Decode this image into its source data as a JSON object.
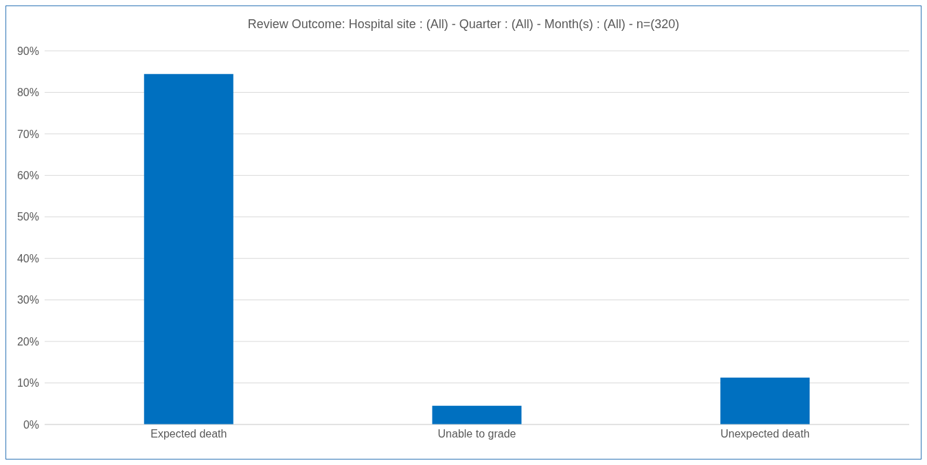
{
  "chart_data": {
    "type": "bar",
    "title": "Review Outcome: Hospital site : (All) - Quarter : (All) - Month(s) : (All) - n=(320)",
    "categories": [
      "Expected death",
      "Unable to grade",
      "Unexpected death"
    ],
    "values": [
      84.4,
      4.5,
      11.3
    ],
    "color": "#0070c0",
    "ylim": [
      0,
      90
    ],
    "yticks": [
      {
        "value": 0,
        "label": "0%"
      },
      {
        "value": 10,
        "label": "10%"
      },
      {
        "value": 20,
        "label": "20%"
      },
      {
        "value": 30,
        "label": "30%"
      },
      {
        "value": 40,
        "label": "40%"
      },
      {
        "value": 50,
        "label": "50%"
      },
      {
        "value": 60,
        "label": "60%"
      },
      {
        "value": 70,
        "label": "70%"
      },
      {
        "value": 80,
        "label": "80%"
      },
      {
        "value": 90,
        "label": "90%"
      }
    ],
    "grid": "y",
    "legend": false
  }
}
